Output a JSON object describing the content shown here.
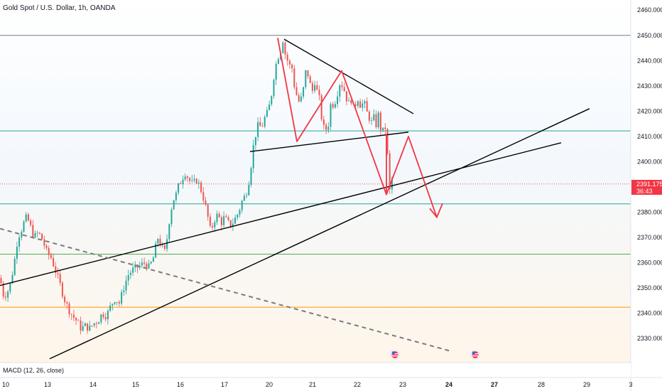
{
  "chart_data": {
    "type": "candlestick",
    "title": "Gold Spot / U.S. Dollar, 1h, OANDA",
    "y_ticks": [
      "2460.000",
      "2450.000",
      "2440.000",
      "2430.000",
      "2420.000",
      "2410.000",
      "2400.000",
      "2380.000",
      "2370.000",
      "2360.000",
      "2350.000",
      "2340.000",
      "2330.000"
    ],
    "y_tick_values": [
      2460,
      2450,
      2440,
      2430,
      2420,
      2410,
      2400,
      2380,
      2370,
      2360,
      2350,
      2340,
      2330
    ],
    "x_ticks": [
      "10",
      "13",
      "14",
      "15",
      "16",
      "17",
      "20",
      "21",
      "22",
      "23",
      "24",
      "27",
      "28",
      "29",
      "3"
    ],
    "bold_x_ticks": [
      "24",
      "27"
    ],
    "ylim": [
      2320.5,
      2464
    ],
    "current_price": "2391.175",
    "countdown": "36:43",
    "indicator_label": "MACD (12, 26, close)",
    "colors": {
      "up": "#26a69a",
      "down": "#ef5350",
      "pattern": "#f23645",
      "trendline": "#000000",
      "resistance_top": "#787b86",
      "level_teal": "#26a69a",
      "level_green": "#4caf50",
      "level_orange": "#ff9800",
      "dashed_trend": "#7b7b7b",
      "price_tag": "#f23645"
    },
    "horizontal_levels": [
      {
        "price": 2450,
        "color": "#787b86"
      },
      {
        "price": 2412.2,
        "color": "#26a69a"
      },
      {
        "price": 2383.3,
        "color": "#26a69a"
      },
      {
        "price": 2363.4,
        "color": "#4caf50"
      },
      {
        "price": 2342.4,
        "color": "#ff9800"
      }
    ],
    "price_path": [
      [
        0,
        2354
      ],
      [
        5,
        2347
      ],
      [
        10,
        2348
      ],
      [
        15,
        2352
      ],
      [
        20,
        2360
      ],
      [
        25,
        2370
      ],
      [
        30,
        2373
      ],
      [
        35,
        2377
      ],
      [
        38,
        2378
      ],
      [
        42,
        2375
      ],
      [
        48,
        2370
      ],
      [
        54,
        2372
      ],
      [
        60,
        2369
      ],
      [
        66,
        2364
      ],
      [
        72,
        2362
      ],
      [
        78,
        2357
      ],
      [
        84,
        2352
      ],
      [
        90,
        2346
      ],
      [
        96,
        2342
      ],
      [
        102,
        2339
      ],
      [
        108,
        2337
      ],
      [
        114,
        2334
      ],
      [
        120,
        2335
      ],
      [
        126,
        2334
      ],
      [
        132,
        2336
      ],
      [
        138,
        2337
      ],
      [
        144,
        2340
      ],
      [
        150,
        2339
      ],
      [
        156,
        2343
      ],
      [
        162,
        2346
      ],
      [
        168,
        2344
      ],
      [
        174,
        2350
      ],
      [
        180,
        2355
      ],
      [
        186,
        2357
      ],
      [
        192,
        2358
      ],
      [
        198,
        2359
      ],
      [
        204,
        2360
      ],
      [
        210,
        2358
      ],
      [
        216,
        2362
      ],
      [
        222,
        2370
      ],
      [
        228,
        2366
      ],
      [
        233,
        2364
      ],
      [
        236,
        2372
      ],
      [
        240,
        2380
      ],
      [
        244,
        2385
      ],
      [
        248,
        2387
      ],
      [
        252,
        2391
      ],
      [
        256,
        2393
      ],
      [
        260,
        2396
      ],
      [
        264,
        2394
      ],
      [
        268,
        2392
      ],
      [
        272,
        2391
      ],
      [
        276,
        2393
      ],
      [
        280,
        2391
      ],
      [
        284,
        2388
      ],
      [
        288,
        2384
      ],
      [
        292,
        2379
      ],
      [
        296,
        2373
      ],
      [
        300,
        2375
      ],
      [
        304,
        2379
      ],
      [
        308,
        2378
      ],
      [
        312,
        2376
      ],
      [
        316,
        2378
      ],
      [
        320,
        2376
      ],
      [
        324,
        2375
      ],
      [
        328,
        2376
      ],
      [
        332,
        2378
      ],
      [
        336,
        2380
      ],
      [
        340,
        2384
      ],
      [
        344,
        2386
      ],
      [
        348,
        2389
      ],
      [
        352,
        2395
      ],
      [
        356,
        2405
      ],
      [
        360,
        2411
      ],
      [
        364,
        2415
      ],
      [
        368,
        2413
      ],
      [
        372,
        2417
      ],
      [
        376,
        2419
      ],
      [
        380,
        2423
      ],
      [
        383,
        2428
      ],
      [
        386,
        2435
      ],
      [
        389,
        2439
      ],
      [
        392,
        2442
      ],
      [
        395,
        2444
      ],
      [
        398,
        2449
      ],
      [
        401,
        2443
      ],
      [
        404,
        2441
      ],
      [
        407,
        2437
      ],
      [
        410,
        2440
      ],
      [
        413,
        2432
      ],
      [
        416,
        2428
      ],
      [
        419,
        2425
      ],
      [
        422,
        2423
      ],
      [
        425,
        2426
      ],
      [
        428,
        2430
      ],
      [
        431,
        2437
      ],
      [
        434,
        2434
      ],
      [
        437,
        2430
      ],
      [
        440,
        2428
      ],
      [
        443,
        2432
      ],
      [
        446,
        2428
      ],
      [
        449,
        2426
      ],
      [
        452,
        2419
      ],
      [
        455,
        2413
      ],
      [
        458,
        2414
      ],
      [
        461,
        2411
      ],
      [
        464,
        2420
      ],
      [
        467,
        2425
      ],
      [
        470,
        2421
      ],
      [
        473,
        2426
      ],
      [
        476,
        2428
      ],
      [
        479,
        2432
      ],
      [
        482,
        2430
      ],
      [
        485,
        2428
      ],
      [
        488,
        2425
      ],
      [
        491,
        2423
      ],
      [
        494,
        2425
      ],
      [
        497,
        2421
      ],
      [
        500,
        2422
      ],
      [
        503,
        2426
      ],
      [
        506,
        2423
      ],
      [
        509,
        2422
      ],
      [
        512,
        2424
      ],
      [
        515,
        2421
      ],
      [
        518,
        2418
      ],
      [
        521,
        2417
      ],
      [
        524,
        2415
      ],
      [
        527,
        2418
      ],
      [
        530,
        2414
      ],
      [
        533,
        2419
      ],
      [
        536,
        2413
      ],
      [
        539,
        2412
      ],
      [
        542,
        2414
      ],
      [
        545,
        2409
      ],
      [
        546,
        2396
      ],
      [
        548,
        2387
      ],
      [
        551,
        2393
      ],
      [
        554,
        2394
      ]
    ],
    "trendlines": [
      {
        "style": "solid",
        "points": [
          [
            0,
            2351
          ],
          [
            790,
            2407.5
          ]
        ]
      },
      {
        "style": "solid",
        "points": [
          [
            70,
            2322
          ],
          [
            830,
            2421
          ]
        ]
      },
      {
        "style": "solid",
        "points": [
          [
            352,
            2404
          ],
          [
            575,
            2411.7
          ]
        ]
      },
      {
        "style": "solid",
        "points": [
          [
            400,
            2448.5
          ],
          [
            582,
            2419
          ]
        ]
      },
      {
        "style": "dashed",
        "points": [
          [
            0,
            2373.5
          ],
          [
            635,
            2325
          ]
        ]
      }
    ],
    "pattern_path": [
      [
        391,
        2449
      ],
      [
        418,
        2408
      ],
      [
        481,
        2436
      ],
      [
        544,
        2387
      ],
      [
        575,
        2410
      ],
      [
        615,
        2378
      ]
    ],
    "pattern_arrow_head": [
      [
        605,
        2381.5
      ],
      [
        615,
        2378
      ],
      [
        623,
        2383.5
      ]
    ],
    "vertical_spike": {
      "x": 544,
      "from": 2411,
      "to": 2387
    },
    "event_markers": [
      556,
      669
    ]
  }
}
